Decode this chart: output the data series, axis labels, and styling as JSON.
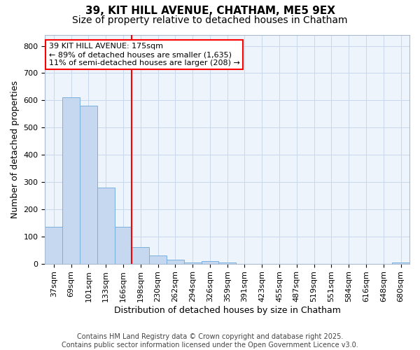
{
  "title1": "39, KIT HILL AVENUE, CHATHAM, ME5 9EX",
  "title2": "Size of property relative to detached houses in Chatham",
  "xlabel": "Distribution of detached houses by size in Chatham",
  "ylabel": "Number of detached properties",
  "categories": [
    "37sqm",
    "69sqm",
    "101sqm",
    "133sqm",
    "166sqm",
    "198sqm",
    "230sqm",
    "262sqm",
    "294sqm",
    "326sqm",
    "359sqm",
    "391sqm",
    "423sqm",
    "455sqm",
    "487sqm",
    "519sqm",
    "551sqm",
    "584sqm",
    "616sqm",
    "648sqm",
    "680sqm"
  ],
  "values": [
    135,
    610,
    580,
    280,
    135,
    60,
    30,
    15,
    5,
    10,
    5,
    0,
    0,
    0,
    0,
    0,
    0,
    0,
    0,
    0,
    5
  ],
  "bar_color": "#c5d8f0",
  "bar_edge_color": "#7ab0de",
  "grid_color": "#c8d8ec",
  "background_color": "#ffffff",
  "plot_bg_color": "#eef4fc",
  "vline_color": "red",
  "vline_x": 4.5,
  "annotation_text": "39 KIT HILL AVENUE: 175sqm\n← 89% of detached houses are smaller (1,635)\n11% of semi-detached houses are larger (208) →",
  "annotation_box_color": "white",
  "annotation_box_edge": "red",
  "ylim": [
    0,
    840
  ],
  "yticks": [
    0,
    100,
    200,
    300,
    400,
    500,
    600,
    700,
    800
  ],
  "footer1": "Contains HM Land Registry data © Crown copyright and database right 2025.",
  "footer2": "Contains public sector information licensed under the Open Government Licence v3.0.",
  "title_fontsize": 11,
  "subtitle_fontsize": 10,
  "tick_fontsize": 8,
  "ylabel_fontsize": 9,
  "xlabel_fontsize": 9,
  "annotation_fontsize": 8,
  "footer_fontsize": 7
}
